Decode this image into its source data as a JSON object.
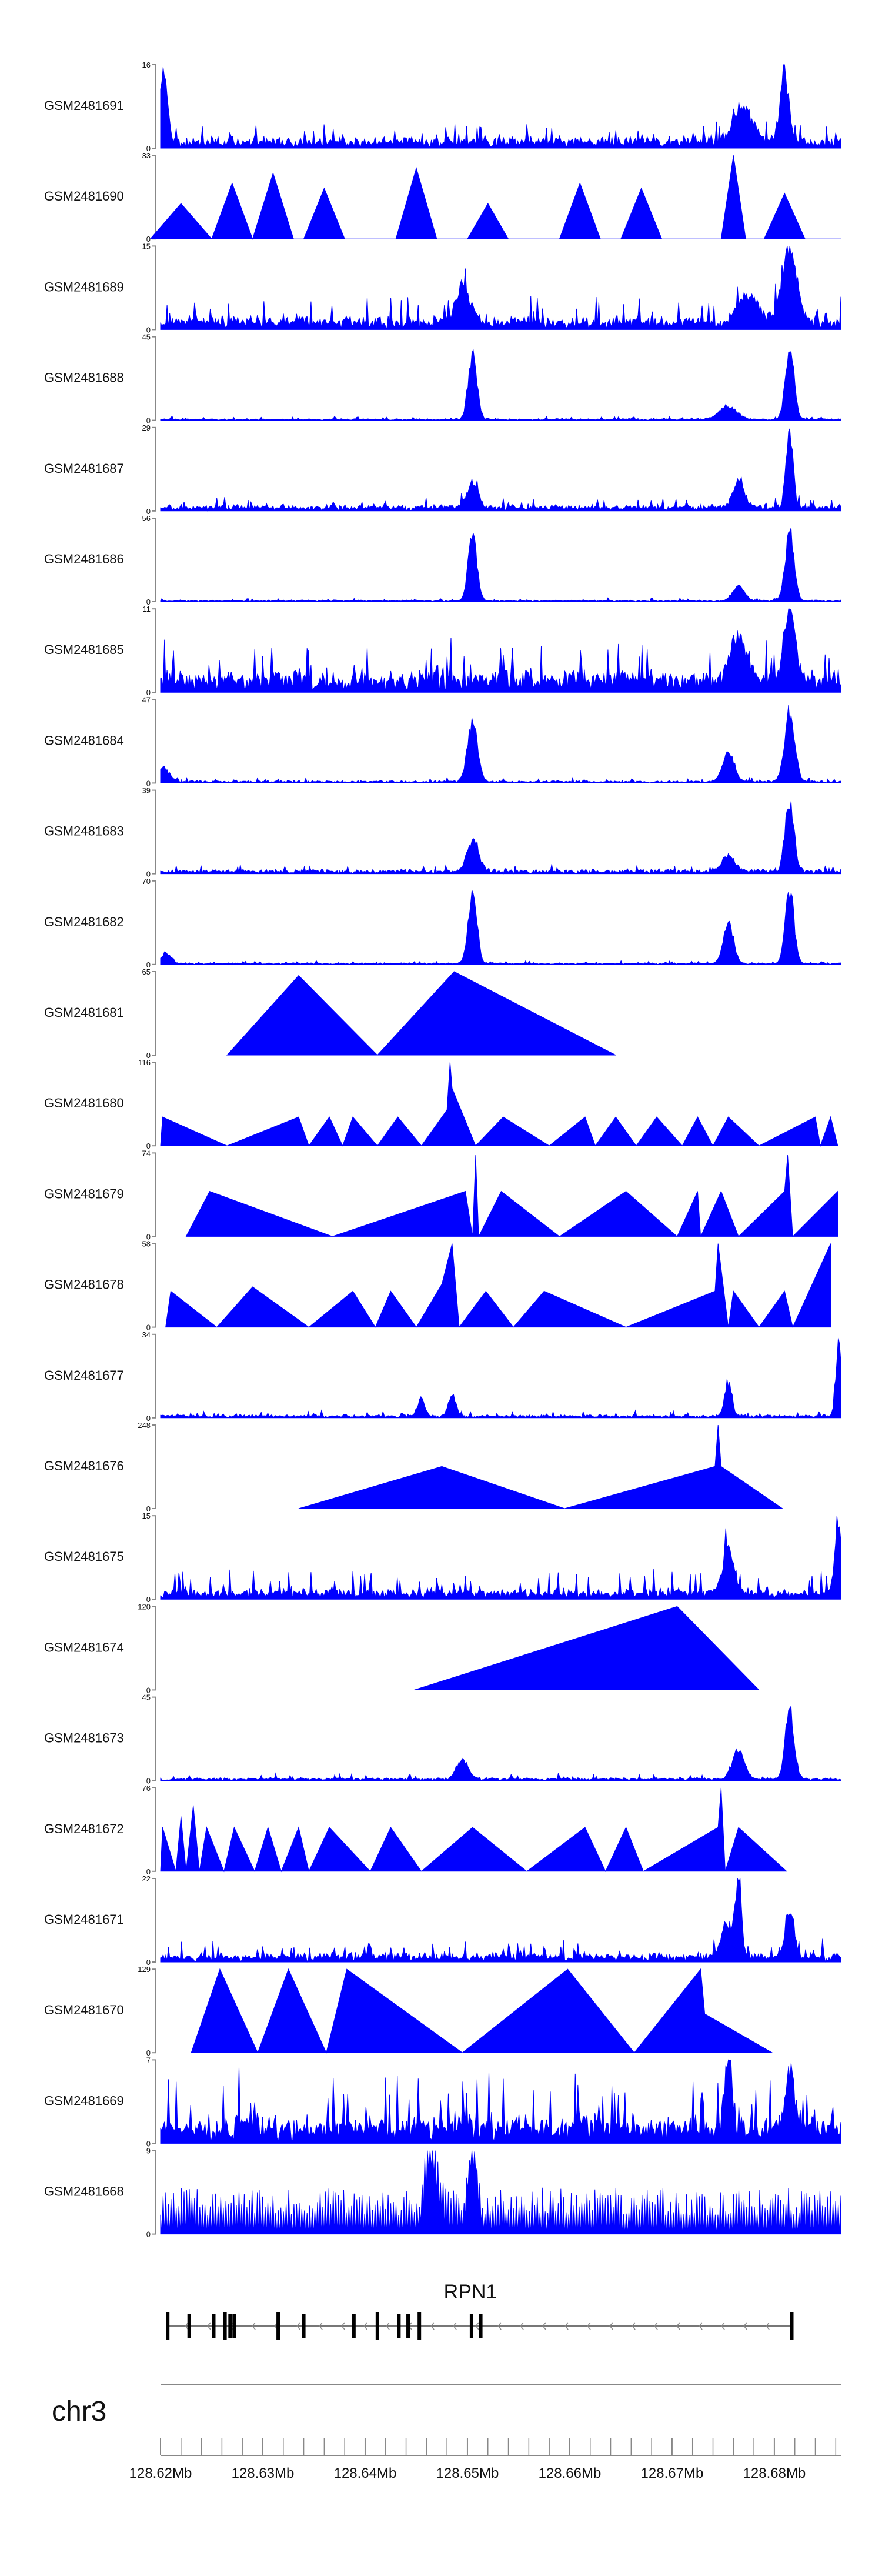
{
  "chart_data": {
    "type": "area",
    "title": "",
    "xlabel": "",
    "ylabel": "",
    "chromosome": "chr3",
    "x_range_mb": [
      128.62,
      128.6865
    ],
    "x_ticks": [
      "128.62Mb",
      "128.63Mb",
      "128.64Mb",
      "128.65Mb",
      "128.66Mb",
      "128.67Mb",
      "128.68Mb"
    ],
    "x_tick_values": [
      128.62,
      128.63,
      128.64,
      128.65,
      128.66,
      128.67,
      128.68
    ],
    "gene": {
      "name": "RPN1",
      "start_mb": 128.6207,
      "end_mb": 128.6817,
      "strand": "-",
      "exons_mb": [
        128.6207,
        128.6228,
        128.6252,
        128.6263,
        128.6268,
        128.6272,
        128.6315,
        128.634,
        128.6389,
        128.6412,
        128.6433,
        128.6442,
        128.6453,
        128.6504,
        128.6513,
        128.6817
      ]
    },
    "series": [
      {
        "name": "GSM2481691",
        "ymax": 16,
        "pattern": "noise",
        "base": 1.5,
        "noise": 2.5,
        "peaks": [
          [
            128.6203,
            15,
            0.0005
          ],
          [
            128.677,
            8,
            0.0012
          ],
          [
            128.681,
            14,
            0.0006
          ]
        ]
      },
      {
        "name": "GSM2481690",
        "ymax": 33,
        "pattern": "sparse",
        "peaks": [
          [
            128.622,
            14,
            0.003
          ],
          [
            128.627,
            22,
            0.002
          ],
          [
            128.631,
            26,
            0.002
          ],
          [
            128.636,
            20,
            0.002
          ],
          [
            128.645,
            28,
            0.002
          ],
          [
            128.652,
            14,
            0.002
          ],
          [
            128.661,
            22,
            0.002
          ],
          [
            128.667,
            20,
            0.002
          ],
          [
            128.676,
            33,
            0.0012
          ],
          [
            128.681,
            18,
            0.002
          ]
        ]
      },
      {
        "name": "GSM2481689",
        "ymax": 15,
        "pattern": "noise",
        "base": 1.5,
        "noise": 3,
        "peaks": [
          [
            128.6495,
            7,
            0.001
          ],
          [
            128.6815,
            15,
            0.001
          ],
          [
            128.6775,
            5,
            0.0015
          ]
        ]
      },
      {
        "name": "GSM2481688",
        "ymax": 45,
        "pattern": "peaks",
        "base": 0.6,
        "noise": 1,
        "peaks": [
          [
            128.6505,
            38,
            0.0006
          ],
          [
            128.6755,
            8,
            0.0012
          ],
          [
            128.6815,
            43,
            0.0006
          ]
        ]
      },
      {
        "name": "GSM2481687",
        "ymax": 29,
        "pattern": "noise",
        "base": 1.5,
        "noise": 2.5,
        "peaks": [
          [
            128.6505,
            9,
            0.0008
          ],
          [
            128.6765,
            10,
            0.0008
          ],
          [
            128.6815,
            28,
            0.0005
          ]
        ]
      },
      {
        "name": "GSM2481686",
        "ymax": 56,
        "pattern": "peaks",
        "base": 0.8,
        "noise": 1.2,
        "peaks": [
          [
            128.6505,
            52,
            0.0006
          ],
          [
            128.6765,
            11,
            0.0008
          ],
          [
            128.6815,
            54,
            0.0006
          ]
        ]
      },
      {
        "name": "GSM2481685",
        "ymax": 11,
        "pattern": "noise",
        "base": 1.8,
        "noise": 3.5,
        "peaks": [
          [
            128.6815,
            11,
            0.0008
          ],
          [
            128.6765,
            6,
            0.0012
          ]
        ]
      },
      {
        "name": "GSM2481684",
        "ymax": 47,
        "pattern": "peaks",
        "base": 1,
        "noise": 1.5,
        "peaks": [
          [
            128.6203,
            9,
            0.0008
          ],
          [
            128.6505,
            38,
            0.0007
          ],
          [
            128.6755,
            18,
            0.0008
          ],
          [
            128.6815,
            44,
            0.0007
          ]
        ]
      },
      {
        "name": "GSM2481683",
        "ymax": 39,
        "pattern": "peaks",
        "base": 1.5,
        "noise": 2,
        "peaks": [
          [
            128.6505,
            16,
            0.0008
          ],
          [
            128.6755,
            9,
            0.0008
          ],
          [
            128.6815,
            38,
            0.0006
          ]
        ]
      },
      {
        "name": "GSM2481682",
        "ymax": 70,
        "pattern": "peaks",
        "base": 1,
        "noise": 1.5,
        "peaks": [
          [
            128.6205,
            10,
            0.0007
          ],
          [
            128.6505,
            68,
            0.0006
          ],
          [
            128.6755,
            38,
            0.0007
          ],
          [
            128.6815,
            68,
            0.0006
          ]
        ]
      },
      {
        "name": "GSM2481681",
        "ymax": 65,
        "pattern": "tri",
        "points": [
          [
            128.6265,
            0
          ],
          [
            128.6335,
            62
          ],
          [
            128.6412,
            0
          ],
          [
            128.6487,
            65
          ],
          [
            128.6645,
            0
          ]
        ]
      },
      {
        "name": "GSM2481680",
        "ymax": 116,
        "pattern": "tri",
        "points": [
          [
            128.62,
            0
          ],
          [
            128.6202,
            40
          ],
          [
            128.6265,
            0
          ],
          [
            128.6335,
            40
          ],
          [
            128.6345,
            0
          ],
          [
            128.6365,
            40
          ],
          [
            128.6378,
            0
          ],
          [
            128.6388,
            40
          ],
          [
            128.6412,
            0
          ],
          [
            128.6432,
            40
          ],
          [
            128.6455,
            0
          ],
          [
            128.648,
            50
          ],
          [
            128.6483,
            116
          ],
          [
            128.6485,
            80
          ],
          [
            128.6508,
            0
          ],
          [
            128.6535,
            40
          ],
          [
            128.658,
            0
          ],
          [
            128.6615,
            40
          ],
          [
            128.6625,
            0
          ],
          [
            128.6645,
            40
          ],
          [
            128.6665,
            0
          ],
          [
            128.6685,
            40
          ],
          [
            128.671,
            0
          ],
          [
            128.6725,
            40
          ],
          [
            128.674,
            0
          ],
          [
            128.6755,
            40
          ],
          [
            128.6785,
            0
          ],
          [
            128.684,
            40
          ],
          [
            128.6845,
            0
          ],
          [
            128.6855,
            40
          ],
          [
            128.6862,
            0
          ]
        ]
      },
      {
        "name": "GSM2481679",
        "ymax": 74,
        "pattern": "tri",
        "points": [
          [
            128.6225,
            0
          ],
          [
            128.6248,
            40
          ],
          [
            128.6368,
            0
          ],
          [
            128.6498,
            40
          ],
          [
            128.6505,
            0
          ],
          [
            128.6508,
            72
          ],
          [
            128.6511,
            0
          ],
          [
            128.6533,
            40
          ],
          [
            128.659,
            0
          ],
          [
            128.6655,
            40
          ],
          [
            128.6705,
            0
          ],
          [
            128.6725,
            40
          ],
          [
            128.6728,
            0
          ],
          [
            128.6748,
            40
          ],
          [
            128.6765,
            0
          ],
          [
            128.681,
            40
          ],
          [
            128.6813,
            72
          ],
          [
            128.6818,
            0
          ],
          [
            128.6862,
            40
          ]
        ]
      },
      {
        "name": "GSM2481678",
        "ymax": 58,
        "pattern": "tri",
        "points": [
          [
            128.6205,
            0
          ],
          [
            128.621,
            25
          ],
          [
            128.6255,
            0
          ],
          [
            128.629,
            28
          ],
          [
            128.6345,
            0
          ],
          [
            128.6388,
            25
          ],
          [
            128.641,
            0
          ],
          [
            128.6425,
            25
          ],
          [
            128.645,
            0
          ],
          [
            128.6475,
            30
          ],
          [
            128.6485,
            58
          ],
          [
            128.6492,
            0
          ],
          [
            128.6518,
            25
          ],
          [
            128.6545,
            0
          ],
          [
            128.6575,
            25
          ],
          [
            128.6655,
            0
          ],
          [
            128.6742,
            25
          ],
          [
            128.6745,
            58
          ],
          [
            128.6755,
            0
          ],
          [
            128.676,
            25
          ],
          [
            128.6785,
            0
          ],
          [
            128.681,
            25
          ],
          [
            128.6818,
            0
          ],
          [
            128.6855,
            58
          ]
        ]
      },
      {
        "name": "GSM2481677",
        "ymax": 34,
        "pattern": "noise",
        "base": 0.8,
        "noise": 1.5,
        "peaks": [
          [
            128.6455,
            8,
            0.0005
          ],
          [
            128.6485,
            10,
            0.0005
          ],
          [
            128.6755,
            16,
            0.0005
          ],
          [
            128.6863,
            34,
            0.0004
          ]
        ]
      },
      {
        "name": "GSM2481676",
        "ymax": 248,
        "pattern": "tri",
        "points": [
          [
            128.6335,
            0
          ],
          [
            128.6475,
            125
          ],
          [
            128.6595,
            0
          ],
          [
            128.6742,
            125
          ],
          [
            128.6745,
            248
          ],
          [
            128.6748,
            125
          ],
          [
            128.6808,
            0
          ]
        ]
      },
      {
        "name": "GSM2481675",
        "ymax": 15,
        "pattern": "noise",
        "base": 1,
        "noise": 3,
        "peaks": [
          [
            128.6755,
            9,
            0.0008
          ],
          [
            128.6863,
            15,
            0.0005
          ]
        ]
      },
      {
        "name": "GSM2481674",
        "ymax": 120,
        "pattern": "tri",
        "points": [
          [
            128.6448,
            0
          ],
          [
            128.6705,
            120
          ],
          [
            128.6785,
            0
          ]
        ]
      },
      {
        "name": "GSM2481673",
        "ymax": 45,
        "pattern": "noise",
        "base": 1,
        "noise": 2,
        "peaks": [
          [
            128.6495,
            12,
            0.0008
          ],
          [
            128.6765,
            18,
            0.0008
          ],
          [
            128.6815,
            43,
            0.0006
          ]
        ]
      },
      {
        "name": "GSM2481672",
        "ymax": 76,
        "pattern": "tri",
        "points": [
          [
            128.62,
            0
          ],
          [
            128.6202,
            40
          ],
          [
            128.6215,
            0
          ],
          [
            128.622,
            50
          ],
          [
            128.6225,
            0
          ],
          [
            128.6232,
            60
          ],
          [
            128.6238,
            0
          ],
          [
            128.6245,
            40
          ],
          [
            128.6262,
            0
          ],
          [
            128.6272,
            40
          ],
          [
            128.6292,
            0
          ],
          [
            128.6305,
            40
          ],
          [
            128.6318,
            0
          ],
          [
            128.6335,
            40
          ],
          [
            128.6345,
            0
          ],
          [
            128.6365,
            40
          ],
          [
            128.6405,
            0
          ],
          [
            128.6425,
            40
          ],
          [
            128.6455,
            0
          ],
          [
            128.6505,
            40
          ],
          [
            128.6558,
            0
          ],
          [
            128.6615,
            40
          ],
          [
            128.6635,
            0
          ],
          [
            128.6655,
            40
          ],
          [
            128.6672,
            0
          ],
          [
            128.6745,
            40
          ],
          [
            128.6748,
            76
          ],
          [
            128.6752,
            0
          ],
          [
            128.6765,
            40
          ],
          [
            128.6812,
            0
          ]
        ]
      },
      {
        "name": "GSM2481671",
        "ymax": 22,
        "pattern": "noise",
        "base": 1.5,
        "noise": 3,
        "peaks": [
          [
            128.6765,
            22,
            0.0004
          ],
          [
            128.6815,
            14,
            0.0006
          ],
          [
            128.6755,
            9,
            0.001
          ]
        ]
      },
      {
        "name": "GSM2481670",
        "ymax": 129,
        "pattern": "tri",
        "points": [
          [
            128.623,
            0
          ],
          [
            128.6258,
            129
          ],
          [
            128.6295,
            0
          ],
          [
            128.6325,
            129
          ],
          [
            128.6362,
            0
          ],
          [
            128.6382,
            129
          ],
          [
            128.6495,
            0
          ],
          [
            128.6598,
            129
          ],
          [
            128.6663,
            0
          ],
          [
            128.6728,
            129
          ],
          [
            128.6732,
            60
          ],
          [
            128.6798,
            0
          ]
        ]
      },
      {
        "name": "GSM2481669",
        "ymax": 7,
        "pattern": "noise",
        "base": 1.2,
        "noise": 3.5,
        "peaks": [
          [
            128.6755,
            7,
            0.0005
          ],
          [
            128.6815,
            6,
            0.0006
          ]
        ]
      },
      {
        "name": "GSM2481668",
        "ymax": 9,
        "pattern": "comb",
        "base": 2,
        "noise": 3,
        "peaks": [
          [
            128.6465,
            8,
            0.0008
          ],
          [
            128.6505,
            9,
            0.0006
          ]
        ]
      }
    ]
  }
}
